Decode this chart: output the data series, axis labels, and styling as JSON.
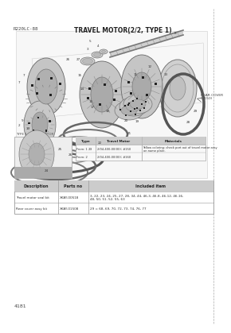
{
  "page_title": "TRAVEL MOTOR(2/2, TYPE 1)",
  "model": "R220LC-88",
  "page_number": "4181",
  "bg": "#ffffff",
  "table_headers": [
    "Description",
    "Parts no",
    "Included item"
  ],
  "table_rows": [
    [
      "Travel motor seal kit",
      "XKAY-00518",
      "3, 22, 23, 24, 25, 27, 28, 34, 44, 46-3, 46-8, 46-12, 46-16,\n48, 50, 51, 52, 55, 63"
    ],
    [
      "Rear cover assy kit",
      "XKAY-01508",
      "29 = 68, 69, 70, 72, 73, 74, 76, 77"
    ]
  ],
  "type_headers": [
    "Type",
    "Travel Motor",
    "Materials"
  ],
  "type_rows": [
    [
      "From: 1",
      "2/04-400-00(00); #150",
      "Yellow coloring: check port out of travel motor assy\non name plate."
    ],
    [
      "From: 2",
      "2/04-400-00(00); #160",
      ""
    ]
  ],
  "rear_cover_label": "REAR COVER\n(#150)",
  "note_label": "TYPE 1 TRAVEL MOTOR",
  "panel_bg": "#f0f0f0",
  "panel_edge": "#bbbbbb",
  "gear_fill": "#c8c8c8",
  "gear_edge": "#666666",
  "ring_color": "#555555",
  "text_color": "#333333",
  "header_bg": "#cccccc"
}
